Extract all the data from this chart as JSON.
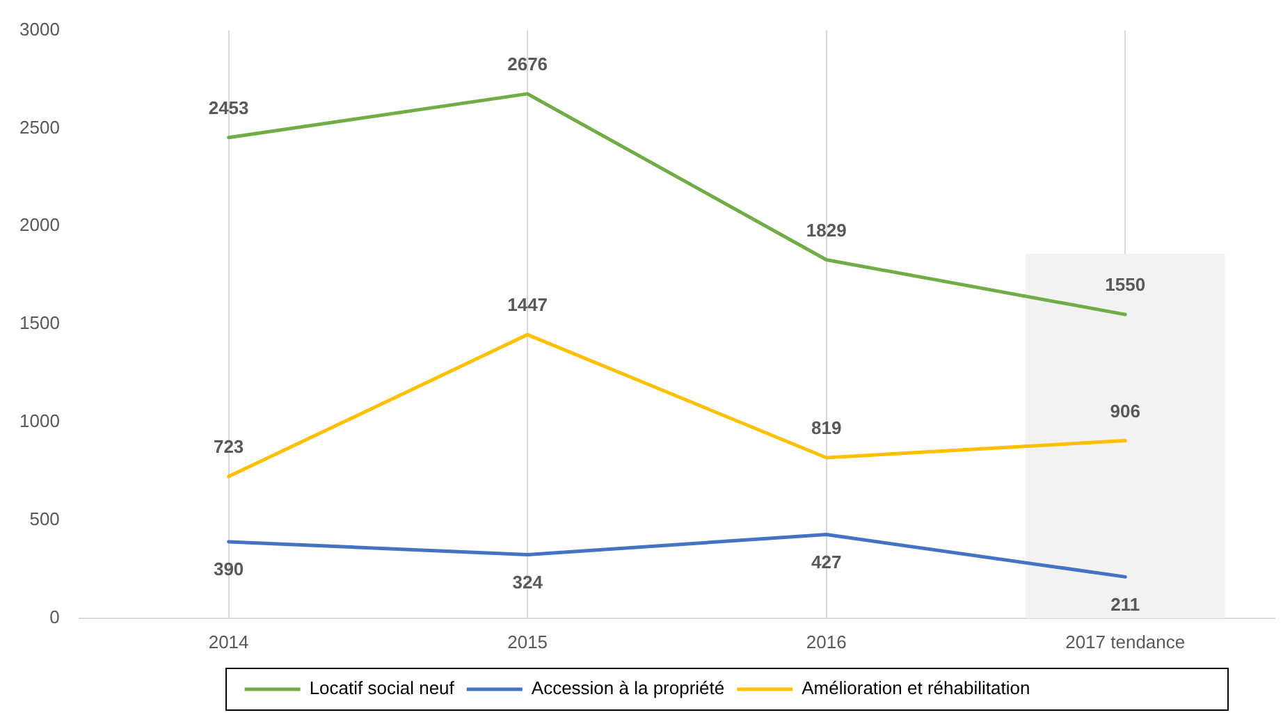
{
  "chart_data": {
    "type": "line",
    "categories": [
      "2014",
      "2015",
      "2016",
      "2017 tendance"
    ],
    "series": [
      {
        "name": "Locatif social neuf",
        "color": "#70ad47",
        "values": [
          2453,
          2676,
          1829,
          1550
        ]
      },
      {
        "name": "Accession à la propriété",
        "color": "#4472c4",
        "values": [
          390,
          324,
          427,
          211
        ]
      },
      {
        "name": "Amélioration et réhabilitation",
        "color": "#ffc000",
        "values": [
          723,
          1447,
          819,
          906
        ]
      }
    ],
    "ylim": [
      0,
      3000
    ],
    "yticks": [
      0,
      500,
      1000,
      1500,
      2000,
      2500,
      3000
    ],
    "bands": [
      {
        "axis": "x",
        "from": "2017 tendance",
        "to": "2017 tendance",
        "color": "#f2f2f2"
      }
    ],
    "grid": "x",
    "legend": "bottom",
    "marker": "none",
    "line_style": "solid",
    "data_labels": true
  }
}
